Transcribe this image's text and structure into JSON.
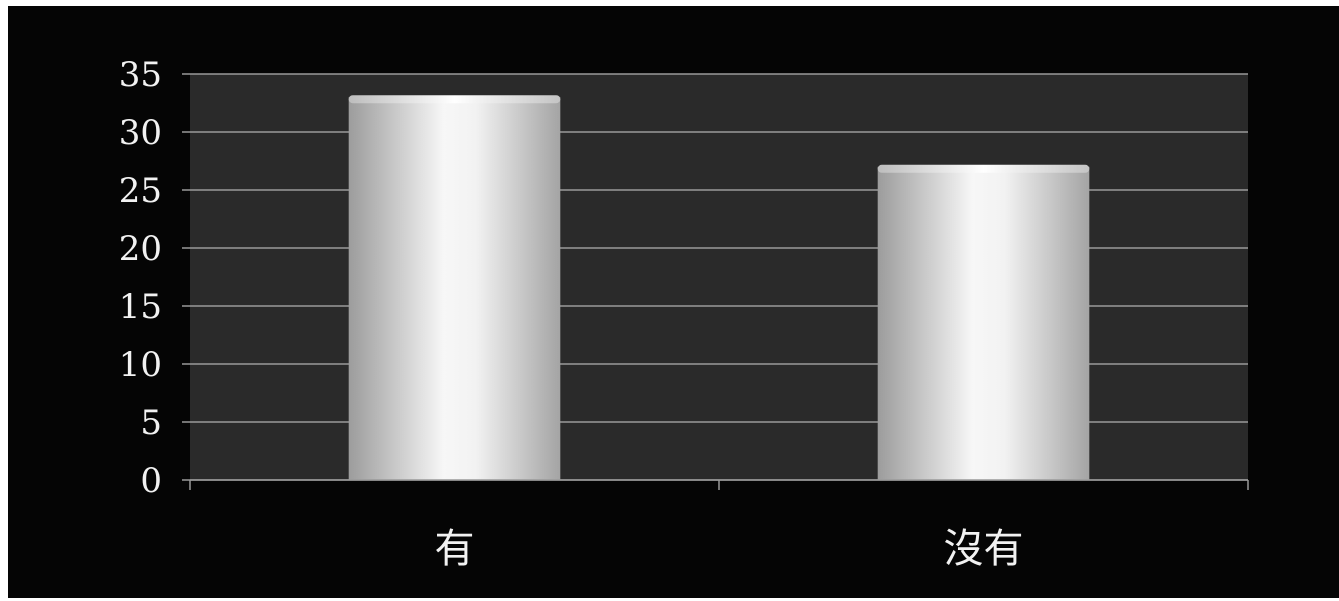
{
  "chart_data": {
    "type": "bar",
    "categories": [
      "有",
      "沒有"
    ],
    "values": [
      33,
      27
    ],
    "ylim": [
      0,
      35
    ],
    "yticks": [
      0,
      5,
      10,
      15,
      20,
      25,
      30,
      35
    ],
    "grid": true,
    "legend": "none",
    "title": "",
    "xlabel": "",
    "ylabel": ""
  },
  "colors": {
    "background": "#050505",
    "plot_area": "#2a2a2a",
    "gridline": "#9a9a9a",
    "axis_text": "#f2f2f2",
    "bar_light": "#f7f7f7",
    "bar_dark": "#9c9c9c"
  }
}
